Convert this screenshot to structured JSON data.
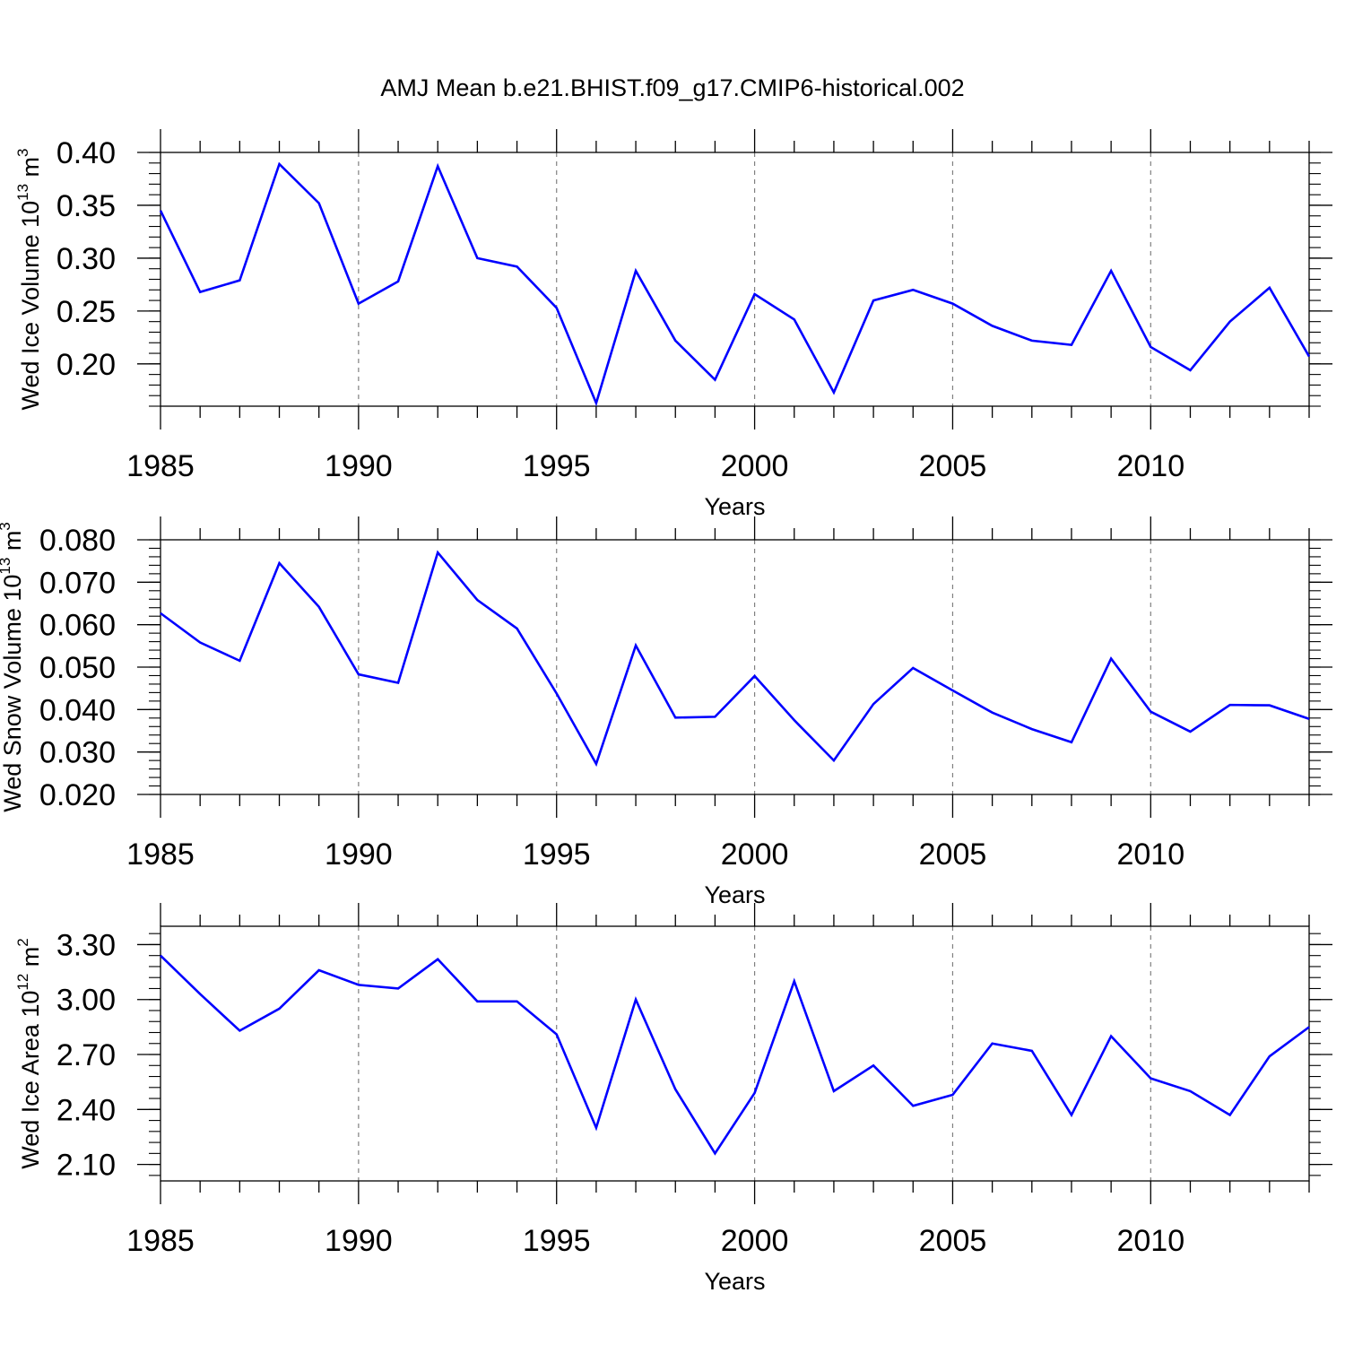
{
  "title": "AMJ Mean b.e21.BHIST.f09_g17.CMIP6-historical.002",
  "colors": {
    "line": "#0000ff",
    "axis": "#000000",
    "grid": "#808080"
  },
  "chart_data": [
    {
      "type": "line",
      "xlabel": "Years",
      "ylabel_base": "Wed Ice Volume 10",
      "ylabel_exp": "13",
      "ylabel_unit": " m",
      "ylabel_unit_exp": "3",
      "xlim": [
        1985,
        2014
      ],
      "ylim": [
        0.16,
        0.4
      ],
      "x_ticks": [
        1985,
        1990,
        1995,
        2000,
        2005,
        2010
      ],
      "x_tick_labels": [
        "1985",
        "1990",
        "1995",
        "2000",
        "2005",
        "2010"
      ],
      "y_ticks": [
        0.2,
        0.25,
        0.3,
        0.35,
        0.4
      ],
      "y_tick_labels": [
        "0.20",
        "0.25",
        "0.30",
        "0.35",
        "0.40"
      ],
      "y_minor_step": 0.01,
      "grid": "x-dashed",
      "x": [
        1985,
        1986,
        1987,
        1988,
        1989,
        1990,
        1991,
        1992,
        1993,
        1994,
        1995,
        1996,
        1997,
        1998,
        1999,
        2000,
        2001,
        2002,
        2003,
        2004,
        2005,
        2006,
        2007,
        2008,
        2009,
        2010,
        2011,
        2012,
        2013,
        2014
      ],
      "series": [
        {
          "values": [
            0.345,
            0.268,
            0.279,
            0.389,
            0.352,
            0.257,
            0.278,
            0.387,
            0.3,
            0.292,
            0.253,
            0.163,
            0.288,
            0.222,
            0.185,
            0.266,
            0.242,
            0.173,
            0.26,
            0.27,
            0.257,
            0.236,
            0.222,
            0.218,
            0.288,
            0.216,
            0.194,
            0.24,
            0.272,
            0.207
          ]
        }
      ]
    },
    {
      "type": "line",
      "xlabel": "Years",
      "ylabel_base": "Wed Snow Volume 10",
      "ylabel_exp": "13",
      "ylabel_unit": " m",
      "ylabel_unit_exp": "3",
      "xlim": [
        1985,
        2014
      ],
      "ylim": [
        0.02,
        0.08
      ],
      "x_ticks": [
        1985,
        1990,
        1995,
        2000,
        2005,
        2010
      ],
      "x_tick_labels": [
        "1985",
        "1990",
        "1995",
        "2000",
        "2005",
        "2010"
      ],
      "y_ticks": [
        0.02,
        0.03,
        0.04,
        0.05,
        0.06,
        0.07,
        0.08
      ],
      "y_tick_labels": [
        "0.020",
        "0.030",
        "0.040",
        "0.050",
        "0.060",
        "0.070",
        "0.080"
      ],
      "y_minor_step": 0.002,
      "grid": "x-dashed",
      "x": [
        1985,
        1986,
        1987,
        1988,
        1989,
        1990,
        1991,
        1992,
        1993,
        1994,
        1995,
        1996,
        1997,
        1998,
        1999,
        2000,
        2001,
        2002,
        2003,
        2004,
        2005,
        2006,
        2007,
        2008,
        2009,
        2010,
        2011,
        2012,
        2013,
        2014
      ],
      "series": [
        {
          "values": [
            0.0627,
            0.0558,
            0.0515,
            0.0745,
            0.0642,
            0.0483,
            0.0463,
            0.077,
            0.0658,
            0.0591,
            0.0438,
            0.0272,
            0.0551,
            0.0381,
            0.0383,
            0.0479,
            0.0375,
            0.028,
            0.0413,
            0.0498,
            0.0445,
            0.0393,
            0.0354,
            0.0323,
            0.052,
            0.0395,
            0.0348,
            0.0411,
            0.041,
            0.0378
          ]
        }
      ]
    },
    {
      "type": "line",
      "xlabel": "Years",
      "ylabel_base": "Wed Ice Area 10",
      "ylabel_exp": "12",
      "ylabel_unit": " m",
      "ylabel_unit_exp": "2",
      "xlim": [
        1985,
        2014
      ],
      "ylim": [
        2.01,
        3.4
      ],
      "x_ticks": [
        1985,
        1990,
        1995,
        2000,
        2005,
        2010
      ],
      "x_tick_labels": [
        "1985",
        "1990",
        "1995",
        "2000",
        "2005",
        "2010"
      ],
      "y_ticks": [
        2.1,
        2.4,
        2.7,
        3.0,
        3.3
      ],
      "y_tick_labels": [
        "2.10",
        "2.40",
        "2.70",
        "3.00",
        "3.30"
      ],
      "y_minor_step": 0.06,
      "grid": "x-dashed",
      "x": [
        1985,
        1986,
        1987,
        1988,
        1989,
        1990,
        1991,
        1992,
        1993,
        1994,
        1995,
        1996,
        1997,
        1998,
        1999,
        2000,
        2001,
        2002,
        2003,
        2004,
        2005,
        2006,
        2007,
        2008,
        2009,
        2010,
        2011,
        2012,
        2013,
        2014
      ],
      "series": [
        {
          "values": [
            3.24,
            3.03,
            2.83,
            2.95,
            3.16,
            3.08,
            3.06,
            3.22,
            2.99,
            2.99,
            2.81,
            2.3,
            3.0,
            2.51,
            2.16,
            2.49,
            3.1,
            2.5,
            2.64,
            2.42,
            2.48,
            2.76,
            2.72,
            2.37,
            2.8,
            2.57,
            2.5,
            2.37,
            2.69,
            2.85
          ]
        }
      ]
    }
  ]
}
